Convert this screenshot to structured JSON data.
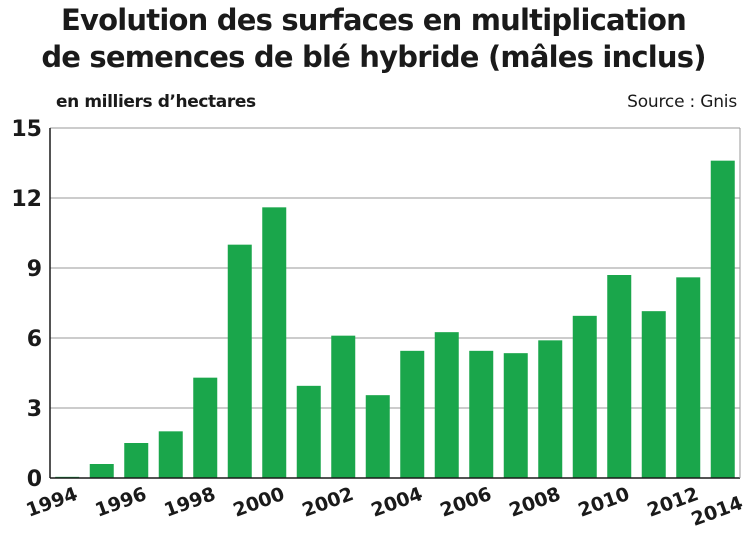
{
  "chart_data": {
    "type": "bar",
    "title_line1": "Evolution des surfaces en multiplication",
    "title_line2": "de semences de blé hybride (mâles inclus)",
    "ylabel": "en milliers d’hectares",
    "source": "Source : Gnis",
    "bar_color": "#1aa64b",
    "grid": true,
    "ylim": [
      0,
      15
    ],
    "yticks": [
      0,
      3,
      6,
      9,
      12,
      15
    ],
    "categories": [
      "1994",
      "1995",
      "1996",
      "1997",
      "1998",
      "1999",
      "2000",
      "2001",
      "2002",
      "2003",
      "2004",
      "2005",
      "2006",
      "2007",
      "2008",
      "2009",
      "2010",
      "2011",
      "2012",
      "2013"
    ],
    "values": [
      0.05,
      0.6,
      1.5,
      2.0,
      4.3,
      10.0,
      11.6,
      3.95,
      6.1,
      3.55,
      5.45,
      6.25,
      5.45,
      5.35,
      5.9,
      6.95,
      8.7,
      7.15,
      8.6,
      13.6
    ],
    "xtick_labels": [
      "1994",
      "1996",
      "1998",
      "2000",
      "2002",
      "2004",
      "2006",
      "2008",
      "2010",
      "2012",
      "2014"
    ]
  }
}
